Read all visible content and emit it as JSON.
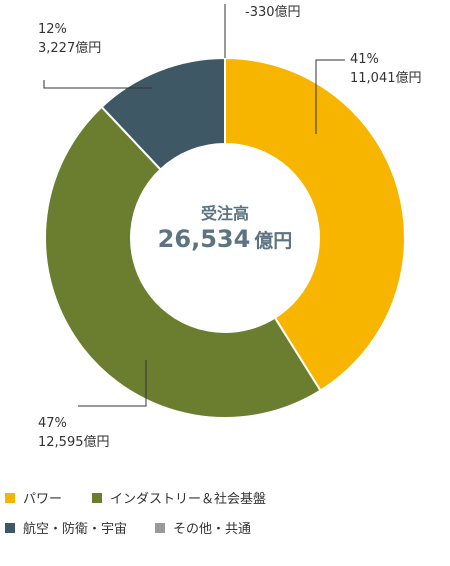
{
  "chart_data": {
    "type": "pie",
    "center_title": "受注高",
    "center_value": "26,534",
    "center_unit": "億円",
    "slices": [
      {
        "name": "パワー",
        "percent_label": "41%",
        "value": 11041,
        "value_label": "11,041億円",
        "color": "#f8b500"
      },
      {
        "name": "インダストリー＆社会基盤",
        "percent_label": "47%",
        "value": 12595,
        "value_label": "12,595億円",
        "color": "#6b7d2e"
      },
      {
        "name": "航空・防衛・宇宙",
        "percent_label": "12%",
        "value": 3227,
        "value_label": "3,227億円",
        "color": "#3f5866"
      },
      {
        "name": "その他・共通",
        "percent_label": "",
        "value": -330,
        "value_label": "-330億円",
        "color": "#999999"
      }
    ]
  }
}
